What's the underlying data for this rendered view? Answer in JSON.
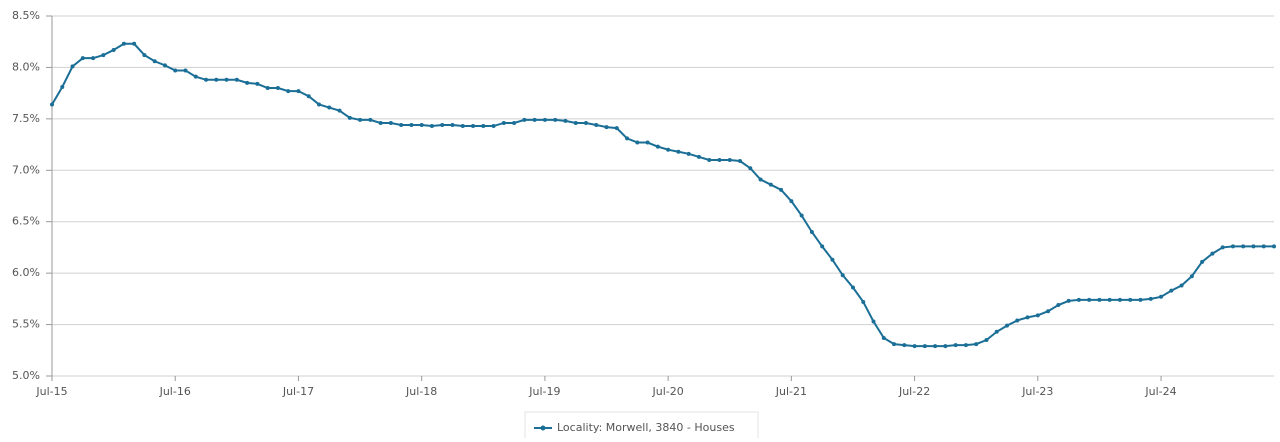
{
  "chart_data": {
    "type": "line",
    "categories": [
      "Jul-15",
      null,
      null,
      null,
      null,
      null,
      null,
      null,
      null,
      null,
      null,
      null,
      "Jul-16",
      null,
      null,
      null,
      null,
      null,
      null,
      null,
      null,
      null,
      null,
      null,
      "Jul-17",
      null,
      null,
      null,
      null,
      null,
      null,
      null,
      null,
      null,
      null,
      null,
      "Jul-18",
      null,
      null,
      null,
      null,
      null,
      null,
      null,
      null,
      null,
      null,
      null,
      "Jul-19",
      null,
      null,
      null,
      null,
      null,
      null,
      null,
      null,
      null,
      null,
      null,
      "Jul-20",
      null,
      null,
      null,
      null,
      null,
      null,
      null,
      null,
      null,
      null,
      null,
      "Jul-21",
      null,
      null,
      null,
      null,
      null,
      null,
      null,
      null,
      null,
      null,
      null,
      "Jul-22",
      null,
      null,
      null,
      null,
      null,
      null,
      null,
      null,
      null,
      null,
      null,
      "Jul-23",
      null,
      null,
      null,
      null,
      null,
      null,
      null,
      null,
      null,
      null,
      null,
      "Jul-24",
      null,
      null,
      null,
      null,
      null,
      null,
      null,
      null,
      null,
      null,
      null
    ],
    "series": [
      {
        "name": "Locality: Morwell, 3840 - Houses",
        "color": "#1b6f97",
        "values": [
          7.64,
          7.81,
          8.01,
          8.09,
          8.09,
          8.12,
          8.17,
          8.23,
          8.23,
          8.12,
          8.06,
          8.02,
          7.97,
          7.97,
          7.91,
          7.88,
          7.88,
          7.88,
          7.88,
          7.85,
          7.84,
          7.8,
          7.8,
          7.77,
          7.77,
          7.72,
          7.64,
          7.61,
          7.58,
          7.51,
          7.49,
          7.49,
          7.46,
          7.46,
          7.44,
          7.44,
          7.44,
          7.43,
          7.44,
          7.44,
          7.43,
          7.43,
          7.43,
          7.43,
          7.46,
          7.46,
          7.49,
          7.49,
          7.49,
          7.49,
          7.48,
          7.46,
          7.46,
          7.44,
          7.42,
          7.41,
          7.31,
          7.27,
          7.27,
          7.23,
          7.2,
          7.18,
          7.16,
          7.13,
          7.1,
          7.1,
          7.1,
          7.09,
          7.02,
          6.91,
          6.86,
          6.81,
          6.7,
          6.56,
          6.4,
          6.26,
          6.13,
          5.98,
          5.86,
          5.72,
          5.53,
          5.37,
          5.31,
          5.3,
          5.29,
          5.29,
          5.29,
          5.29,
          5.3,
          5.3,
          5.31,
          5.35,
          5.43,
          5.49,
          5.54,
          5.57,
          5.59,
          5.63,
          5.69,
          5.73,
          5.74,
          5.74,
          5.74,
          5.74,
          5.74,
          5.74,
          5.74,
          5.75,
          5.77,
          5.83,
          5.88,
          5.97,
          6.11,
          6.19,
          6.25,
          6.26,
          6.26,
          6.26,
          6.26,
          6.26
        ]
      }
    ],
    "ylim": [
      5.0,
      8.5
    ],
    "yticks": [
      {
        "value": 5.0,
        "label": "5.0%"
      },
      {
        "value": 5.5,
        "label": "5.5%"
      },
      {
        "value": 6.0,
        "label": "6.0%"
      },
      {
        "value": 6.5,
        "label": "6.5%"
      },
      {
        "value": 7.0,
        "label": "7.0%"
      },
      {
        "value": 7.5,
        "label": "7.5%"
      },
      {
        "value": 8.0,
        "label": "8.0%"
      },
      {
        "value": 8.5,
        "label": "8.5%"
      }
    ],
    "grid": true,
    "legend": "bottom"
  }
}
